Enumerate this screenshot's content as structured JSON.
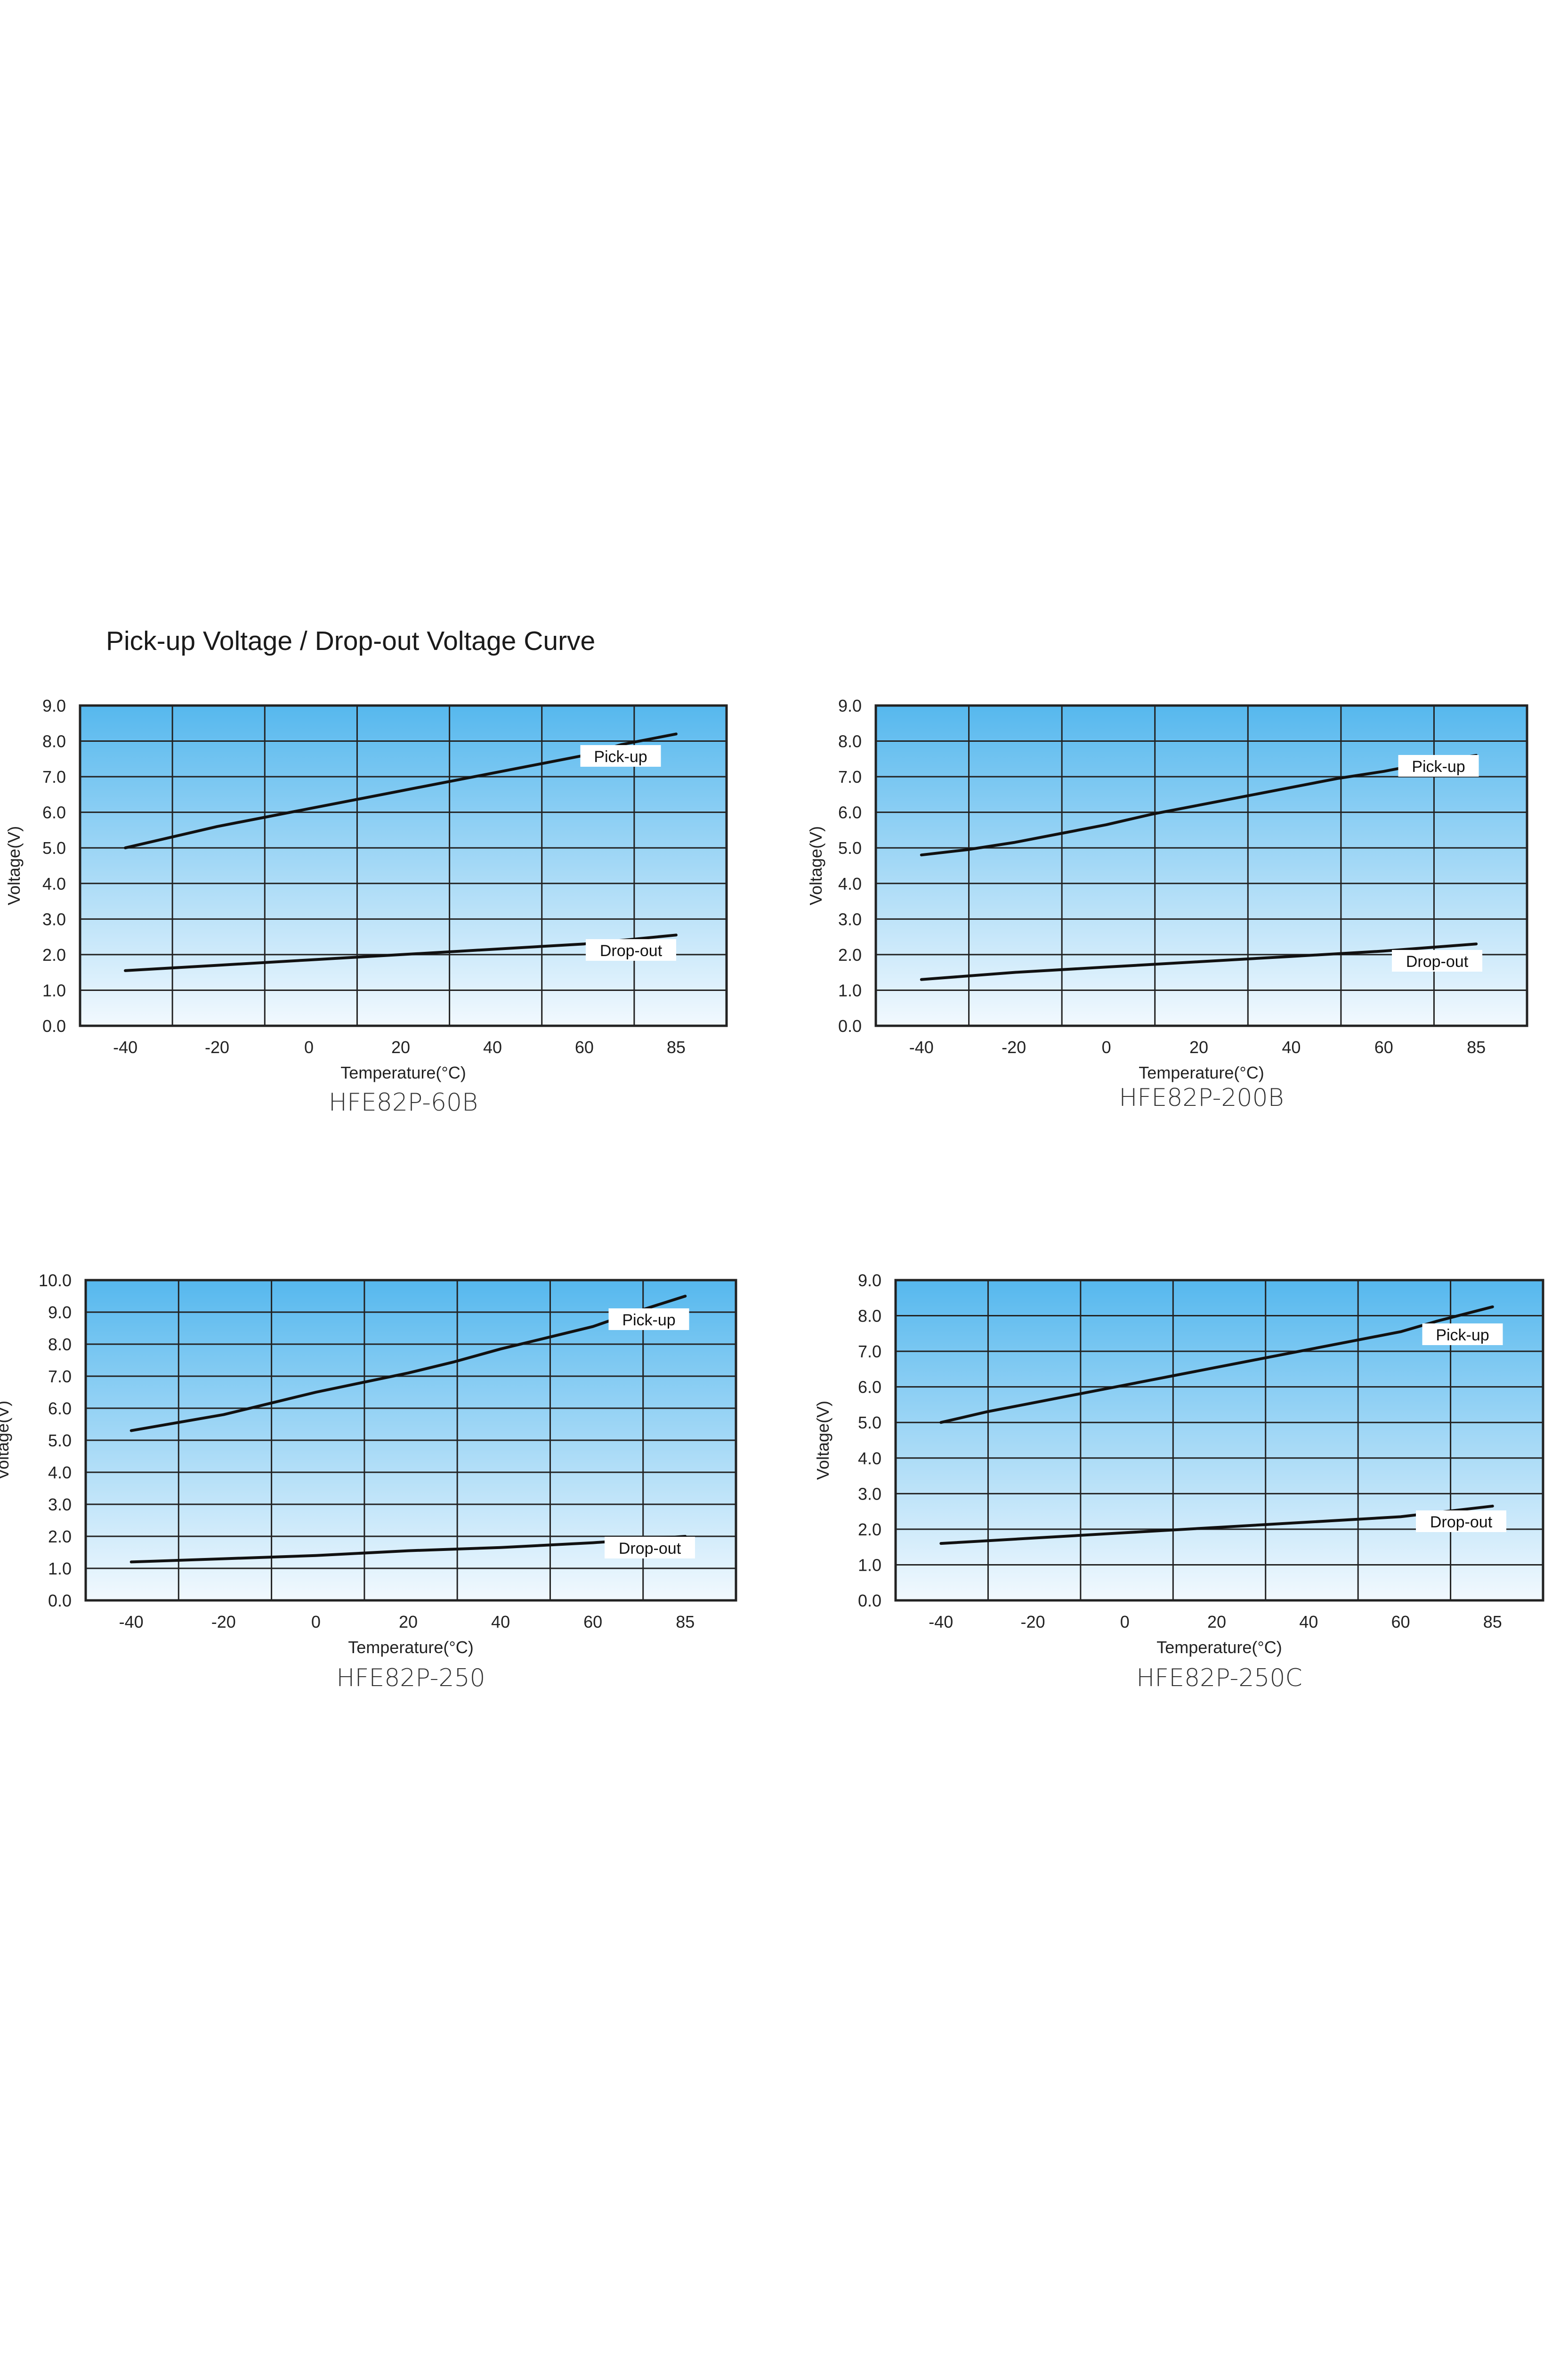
{
  "title": "Pick-up Voltage / Drop-out Voltage Curve",
  "colors": {
    "plot_top": "#56b8ee",
    "plot_bottom": "#f2f9fe",
    "grid": "#222222",
    "line": "#111111"
  },
  "chart_data": [
    {
      "type": "line",
      "model": "HFE82P-60B",
      "xlabel": "Temperature(°C)",
      "ylabel": "Voltage(V)",
      "x_ticks": [
        "-40",
        "-20",
        "0",
        "20",
        "40",
        "60",
        "85"
      ],
      "y_ticks": [
        "0.0",
        "1.0",
        "2.0",
        "3.0",
        "4.0",
        "5.0",
        "6.0",
        "7.0",
        "8.0",
        "9.0"
      ],
      "ylim": [
        0,
        9
      ],
      "grid": true,
      "series": [
        {
          "name": "Pick-up",
          "x": [
            -40,
            -30,
            -20,
            -10,
            0,
            10,
            20,
            30,
            40,
            50,
            60,
            70,
            85
          ],
          "y": [
            5.0,
            5.3,
            5.6,
            5.85,
            6.1,
            6.35,
            6.6,
            6.85,
            7.1,
            7.35,
            7.6,
            7.9,
            8.2
          ]
        },
        {
          "name": "Drop-out",
          "x": [
            -40,
            -20,
            0,
            20,
            40,
            60,
            85
          ],
          "y": [
            1.55,
            1.7,
            1.85,
            2.0,
            2.15,
            2.3,
            2.55
          ]
        }
      ]
    },
    {
      "type": "line",
      "model": "HFE82P-200B",
      "xlabel": "Temperature(°C)",
      "ylabel": "Voltage(V)",
      "x_ticks": [
        "-40",
        "-20",
        "0",
        "20",
        "40",
        "60",
        "85"
      ],
      "y_ticks": [
        "0.0",
        "1.0",
        "2.0",
        "3.0",
        "4.0",
        "5.0",
        "6.0",
        "7.0",
        "8.0",
        "9.0"
      ],
      "ylim": [
        0,
        9
      ],
      "grid": true,
      "series": [
        {
          "name": "Pick-up",
          "x": [
            -40,
            -30,
            -20,
            -10,
            0,
            10,
            20,
            30,
            40,
            50,
            60,
            70,
            85
          ],
          "y": [
            4.8,
            4.95,
            5.15,
            5.4,
            5.65,
            5.95,
            6.2,
            6.45,
            6.7,
            6.95,
            7.15,
            7.35,
            7.6
          ]
        },
        {
          "name": "Drop-out",
          "x": [
            -40,
            -20,
            0,
            20,
            40,
            60,
            85
          ],
          "y": [
            1.3,
            1.5,
            1.65,
            1.8,
            1.95,
            2.1,
            2.3
          ]
        }
      ]
    },
    {
      "type": "line",
      "model": "HFE82P-250",
      "xlabel": "Temperature(°C)",
      "ylabel": "Voltage(V)",
      "x_ticks": [
        "-40",
        "-20",
        "0",
        "20",
        "40",
        "60",
        "85"
      ],
      "y_ticks": [
        "0.0",
        "1.0",
        "2.0",
        "3.0",
        "4.0",
        "5.0",
        "6.0",
        "7.0",
        "8.0",
        "9.0",
        "10.0"
      ],
      "ylim": [
        0,
        10
      ],
      "grid": true,
      "series": [
        {
          "name": "Pick-up",
          "x": [
            -40,
            -30,
            -20,
            -10,
            0,
            10,
            20,
            30,
            40,
            50,
            60,
            70,
            85
          ],
          "y": [
            5.3,
            5.55,
            5.8,
            6.15,
            6.5,
            6.8,
            7.1,
            7.45,
            7.85,
            8.2,
            8.55,
            8.95,
            9.5
          ]
        },
        {
          "name": "Drop-out",
          "x": [
            -40,
            -20,
            0,
            20,
            40,
            60,
            85
          ],
          "y": [
            1.2,
            1.3,
            1.4,
            1.55,
            1.65,
            1.8,
            2.0
          ]
        }
      ]
    },
    {
      "type": "line",
      "model": "HFE82P-250C",
      "xlabel": "Temperature(°C)",
      "ylabel": "Voltage(V)",
      "x_ticks": [
        "-40",
        "-20",
        "0",
        "20",
        "40",
        "60",
        "85"
      ],
      "y_ticks": [
        "0.0",
        "1.0",
        "2.0",
        "3.0",
        "4.0",
        "5.0",
        "6.0",
        "7.0",
        "8.0",
        "9.0"
      ],
      "ylim": [
        0,
        9
      ],
      "grid": true,
      "series": [
        {
          "name": "Pick-up",
          "x": [
            -40,
            -30,
            -20,
            -10,
            0,
            10,
            20,
            30,
            40,
            50,
            60,
            70,
            85
          ],
          "y": [
            5.0,
            5.3,
            5.55,
            5.8,
            6.05,
            6.3,
            6.55,
            6.8,
            7.05,
            7.3,
            7.55,
            7.85,
            8.25
          ]
        },
        {
          "name": "Drop-out",
          "x": [
            -40,
            -20,
            0,
            20,
            40,
            60,
            85
          ],
          "y": [
            1.6,
            1.75,
            1.9,
            2.05,
            2.2,
            2.35,
            2.65
          ]
        }
      ]
    }
  ]
}
